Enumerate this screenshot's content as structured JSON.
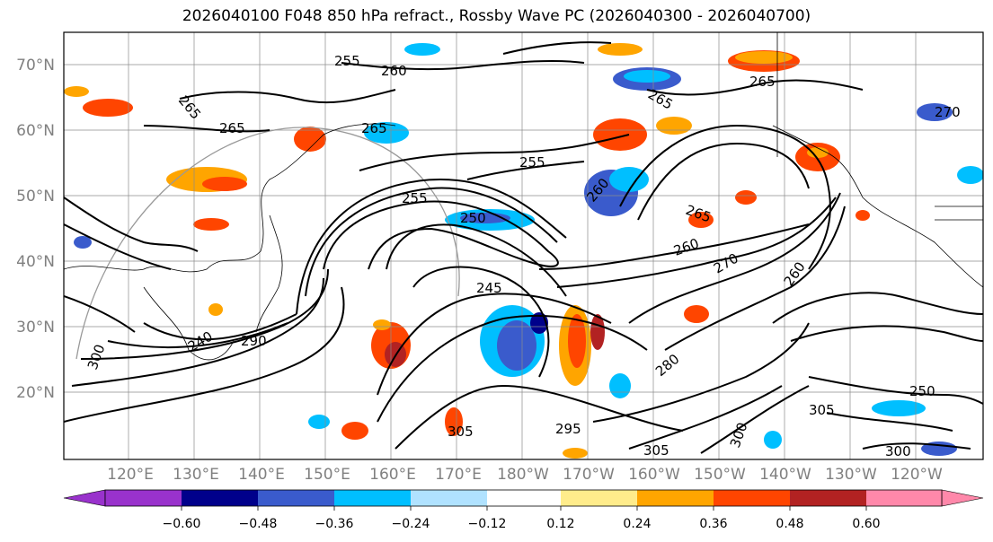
{
  "title": "2026040100 F048 850 hPa refract., Rossby Wave PC (2026040300 - 2026040700)",
  "map": {
    "lat_labels": [
      "70°N",
      "60°N",
      "50°N",
      "40°N",
      "30°N",
      "20°N"
    ],
    "lon_labels": [
      "120°E",
      "130°E",
      "140°E",
      "150°E",
      "160°E",
      "170°E",
      "180°W",
      "170°W",
      "160°W",
      "150°W",
      "140°W",
      "130°W",
      "120°W"
    ],
    "contour_labels": [
      "255",
      "260",
      "265",
      "265",
      "265",
      "265",
      "255",
      "255",
      "250",
      "245",
      "260",
      "265",
      "260",
      "270",
      "265",
      "260",
      "270",
      "280",
      "295",
      "305",
      "305",
      "300",
      "305",
      "300",
      "250",
      "240",
      "290",
      "300"
    ]
  },
  "colorbar": {
    "tick_labels": [
      "−0.60",
      "−0.48",
      "−0.36",
      "−0.24",
      "−0.12",
      "0.12",
      "0.24",
      "0.36",
      "0.48",
      "0.60"
    ],
    "colors": [
      "#9932cc",
      "#00008b",
      "#3a5bcc",
      "#00bfff",
      "#b0e2ff",
      "#ffffff",
      "#ffec8b",
      "#ffa500",
      "#ff4500",
      "#b22222",
      "#ff88aa"
    ]
  }
}
